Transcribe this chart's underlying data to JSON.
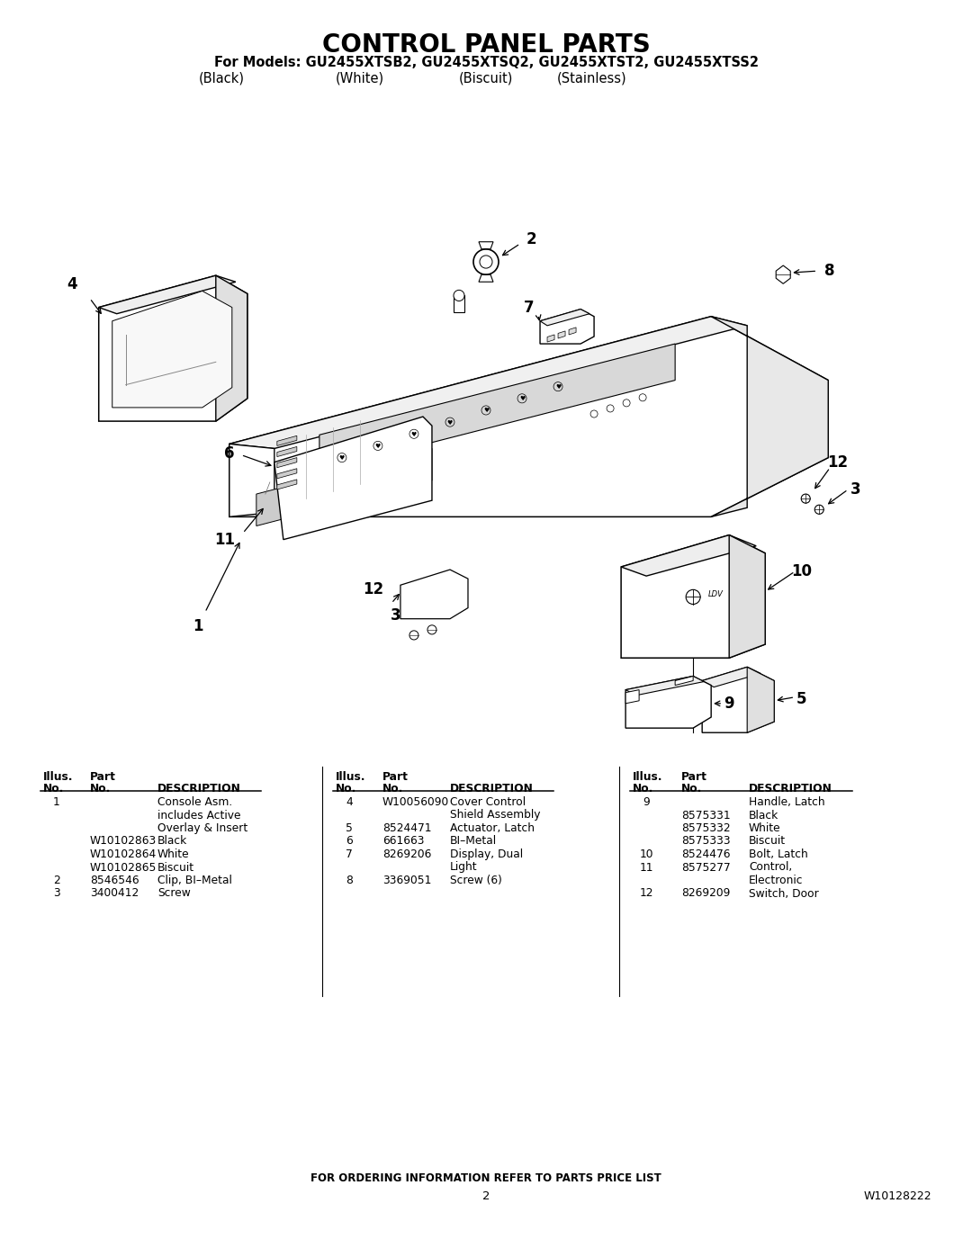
{
  "title": "CONTROL PANEL PARTS",
  "subtitle": "For Models: GU2455XTSB2, GU2455XTSQ2, GU2455XTST2, GU2455XTSS2",
  "subtitle2_parts": [
    "(Black)",
    "(White)",
    "(Biscuit)",
    "(Stainless)"
  ],
  "footer_text": "FOR ORDERING INFORMATION REFER TO PARTS PRICE LIST",
  "page_number": "2",
  "doc_number": "W10128222",
  "bg_color": "#ffffff",
  "table_col1": [
    [
      "1",
      "",
      "Console Asm."
    ],
    [
      "",
      "",
      "includes Active"
    ],
    [
      "",
      "",
      "Overlay & Insert"
    ],
    [
      "",
      "W10102863",
      "Black"
    ],
    [
      "",
      "W10102864",
      "White"
    ],
    [
      "",
      "W10102865",
      "Biscuit"
    ],
    [
      "2",
      "8546546",
      "Clip, BI–Metal"
    ],
    [
      "3",
      "3400412",
      "Screw"
    ]
  ],
  "table_col2": [
    [
      "4",
      "W10056090",
      "Cover Control"
    ],
    [
      "",
      "",
      "Shield Assembly"
    ],
    [
      "5",
      "8524471",
      "Actuator, Latch"
    ],
    [
      "6",
      "661663",
      "BI–Metal"
    ],
    [
      "7",
      "8269206",
      "Display, Dual"
    ],
    [
      "",
      "",
      "Light"
    ],
    [
      "8",
      "3369051",
      "Screw (6)"
    ]
  ],
  "table_col3": [
    [
      "9",
      "",
      "Handle, Latch"
    ],
    [
      "",
      "8575331",
      "Black"
    ],
    [
      "",
      "8575332",
      "White"
    ],
    [
      "",
      "8575333",
      "Biscuit"
    ],
    [
      "10",
      "8524476",
      "Bolt, Latch"
    ],
    [
      "11",
      "8575277",
      "Control,"
    ],
    [
      "",
      "",
      "Electronic"
    ],
    [
      "12",
      "8269209",
      "Switch, Door"
    ]
  ]
}
